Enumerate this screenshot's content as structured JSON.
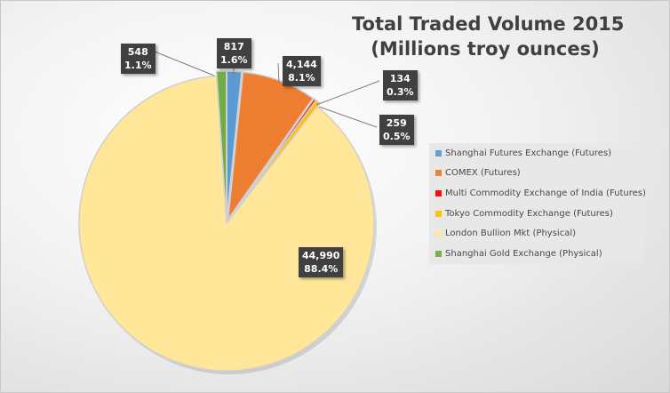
{
  "chart_data": {
    "type": "pie",
    "title": [
      "Total Traded Volume 2015",
      "(Millions troy ounces)"
    ],
    "start_angle": "12 o'clock",
    "direction": "clockwise",
    "legend_position": "right",
    "slices": [
      {
        "name": "Shanghai Futures Exchange (Futures)",
        "value": 817,
        "value_label": "817",
        "percent_label": "1.6%",
        "color": "#5b9bd5"
      },
      {
        "name": "COMEX (Futures)",
        "value": 4144,
        "value_label": "4,144",
        "percent_label": "8.1%",
        "color": "#ed7d31"
      },
      {
        "name": "Multi Commodity Exchange of India (Futures)",
        "value": 134,
        "value_label": "134",
        "percent_label": "0.3%",
        "color": "#ff0000"
      },
      {
        "name": "Tokyo Commodity Exchange (Futures)",
        "value": 259,
        "value_label": "259",
        "percent_label": "0.5%",
        "color": "#ffc000"
      },
      {
        "name": "London Bullion Mkt (Physical)",
        "value": 44990,
        "value_label": "44,990",
        "percent_label": "88.4%",
        "color": "#ffe699"
      },
      {
        "name": "Shanghai Gold Exchange (Physical)",
        "value": 548,
        "value_label": "548",
        "percent_label": "1.1%",
        "color": "#70ad47"
      }
    ]
  }
}
